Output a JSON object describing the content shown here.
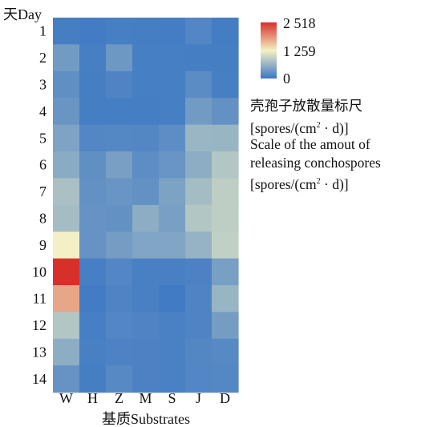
{
  "chart_data": {
    "type": "heatmap",
    "title": "",
    "ylabel": "天Day",
    "xlabel": "基质Substrates",
    "x_categories": [
      "W",
      "H",
      "Z",
      "M",
      "S",
      "J",
      "D"
    ],
    "y_categories": [
      "1",
      "2",
      "3",
      "4",
      "5",
      "6",
      "7",
      "8",
      "9",
      "10",
      "11",
      "12",
      "13",
      "14"
    ],
    "colorbar": {
      "min": 0,
      "max": 2518,
      "tick_labels": [
        "2 518",
        "1 259",
        "0"
      ],
      "tick_values": [
        2518,
        1259,
        0
      ],
      "colors": [
        "#3a76c4",
        "#f3f1c4",
        "#d7302b"
      ],
      "label_lines": [
        "壳孢子放散量标尺",
        "[spores/(cm² · d)]",
        "Scale of the amout of",
        "releasing conchospores",
        "[spores/(cm² · d)]"
      ]
    },
    "values": [
      [
        80,
        60,
        90,
        80,
        70,
        160,
        70
      ],
      [
        380,
        90,
        350,
        90,
        90,
        80,
        80
      ],
      [
        260,
        80,
        140,
        90,
        90,
        230,
        90
      ],
      [
        320,
        80,
        80,
        80,
        90,
        380,
        280
      ],
      [
        460,
        160,
        180,
        160,
        240,
        650,
        640
      ],
      [
        540,
        260,
        420,
        240,
        320,
        560,
        820
      ],
      [
        760,
        280,
        320,
        280,
        450,
        720,
        900
      ],
      [
        720,
        300,
        280,
        560,
        420,
        820,
        900
      ],
      [
        1250,
        300,
        400,
        480,
        480,
        620,
        920
      ],
      [
        2518,
        90,
        160,
        100,
        100,
        120,
        420
      ],
      [
        1750,
        60,
        140,
        100,
        50,
        140,
        640
      ],
      [
        820,
        90,
        160,
        140,
        110,
        140,
        400
      ],
      [
        560,
        100,
        130,
        120,
        110,
        170,
        200
      ],
      [
        300,
        80,
        200,
        120,
        110,
        160,
        180
      ]
    ]
  }
}
